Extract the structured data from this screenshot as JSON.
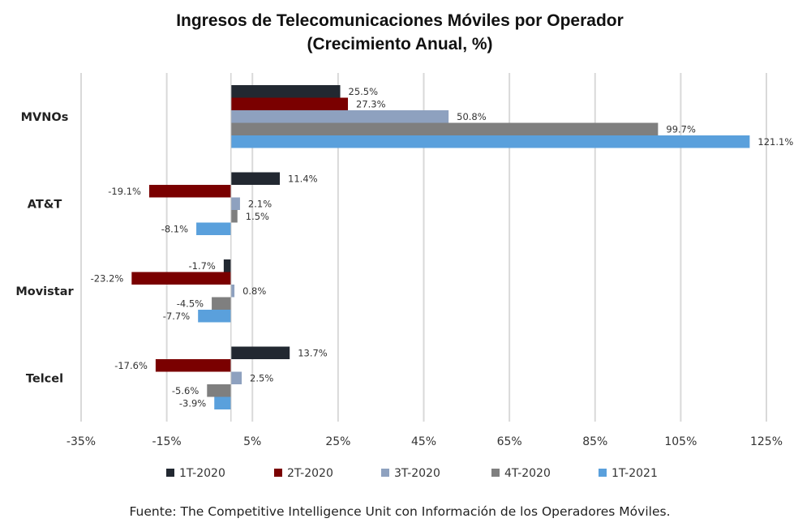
{
  "chart_data": {
    "type": "bar",
    "orientation": "horizontal",
    "title": "Ingresos de Telecomunicaciones Móviles por Operador",
    "subtitle": "(Crecimiento Anual, %)",
    "categories": [
      "MVNOs",
      "AT&T",
      "Movistar",
      "Telcel"
    ],
    "series": [
      {
        "name": "1T-2020",
        "color": "#222831",
        "values": [
          25.5,
          11.4,
          -1.7,
          13.7
        ],
        "labels": [
          "25.5%",
          "11.4%",
          "-1.7%",
          "13.7%"
        ]
      },
      {
        "name": "2T-2020",
        "color": "#7a0000",
        "values": [
          27.3,
          -19.1,
          -23.2,
          -17.6
        ],
        "labels": [
          "27.3%",
          "-19.1%",
          "-23.2%",
          "-17.6%"
        ]
      },
      {
        "name": "3T-2020",
        "color": "#8ea1bf",
        "values": [
          50.8,
          2.1,
          0.8,
          2.5
        ],
        "labels": [
          "50.8%",
          "2.1%",
          "0.8%",
          "2.5%"
        ]
      },
      {
        "name": "4T-2020",
        "color": "#7f7f7f",
        "values": [
          99.7,
          1.5,
          -4.5,
          -5.6
        ],
        "labels": [
          "99.7%",
          "1.5%",
          "-4.5%",
          "-5.6%"
        ]
      },
      {
        "name": "1T-2021",
        "color": "#5aa0dc",
        "values": [
          121.1,
          -8.1,
          -7.7,
          -3.9
        ],
        "labels": [
          "121.1%",
          "-8.1%",
          "-7.7%",
          "-3.9%"
        ]
      }
    ],
    "xlim": [
      -35,
      125
    ],
    "xticks": [
      "-35%",
      "-15%",
      "5%",
      "25%",
      "45%",
      "65%",
      "85%",
      "105%",
      "125%"
    ],
    "xtick_values": [
      -35,
      -15,
      5,
      25,
      45,
      65,
      85,
      105,
      125
    ],
    "grid": "vertical",
    "legend_position": "bottom",
    "source": "Fuente: The Competitive Intelligence Unit con Información de los Operadores Móviles."
  }
}
